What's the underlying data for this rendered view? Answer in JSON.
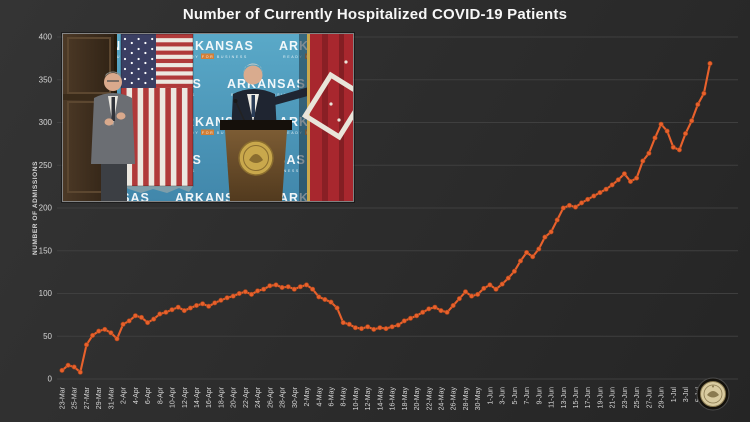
{
  "title": "Number of Currently Hospitalized COVID-19 Patients",
  "colors": {
    "background": "#2d2d2d",
    "grid": "#3f3f3f",
    "tick_text": "#d6d6d6",
    "title_text": "#f7f7f7",
    "line": "#e8612c",
    "marker_stroke": "#a8441a"
  },
  "inset": {
    "backdrop_text": "ARKANSAS",
    "backdrop_subtext": "READY FOR BUSINESS"
  },
  "chart_data": {
    "type": "line",
    "title": "Number of Currently Hospitalized COVID-19 Patients",
    "xlabel": "",
    "ylabel": "NUMBER OF ADMISSIONS",
    "ylim": [
      0,
      400
    ],
    "yticks": [
      0,
      50,
      100,
      150,
      200,
      250,
      300,
      350,
      400
    ],
    "grid": true,
    "legend": "none",
    "x_tick_interval_days": 2,
    "x": [
      "23-Mar",
      "24-Mar",
      "25-Mar",
      "26-Mar",
      "27-Mar",
      "28-Mar",
      "29-Mar",
      "30-Mar",
      "31-Mar",
      "1-Apr",
      "2-Apr",
      "3-Apr",
      "4-Apr",
      "5-Apr",
      "6-Apr",
      "7-Apr",
      "8-Apr",
      "9-Apr",
      "10-Apr",
      "11-Apr",
      "12-Apr",
      "13-Apr",
      "14-Apr",
      "15-Apr",
      "16-Apr",
      "17-Apr",
      "18-Apr",
      "19-Apr",
      "20-Apr",
      "21-Apr",
      "22-Apr",
      "23-Apr",
      "24-Apr",
      "25-Apr",
      "26-Apr",
      "27-Apr",
      "28-Apr",
      "29-Apr",
      "30-Apr",
      "1-May",
      "2-May",
      "3-May",
      "4-May",
      "5-May",
      "6-May",
      "7-May",
      "8-May",
      "9-May",
      "10-May",
      "11-May",
      "12-May",
      "13-May",
      "14-May",
      "15-May",
      "16-May",
      "17-May",
      "18-May",
      "19-May",
      "20-May",
      "21-May",
      "22-May",
      "23-May",
      "24-May",
      "25-May",
      "26-May",
      "27-May",
      "28-May",
      "29-May",
      "30-May",
      "31-May",
      "1-Jun",
      "2-Jun",
      "3-Jun",
      "4-Jun",
      "5-Jun",
      "6-Jun",
      "7-Jun",
      "8-Jun",
      "9-Jun",
      "10-Jun",
      "11-Jun",
      "12-Jun",
      "13-Jun",
      "14-Jun",
      "15-Jun",
      "16-Jun",
      "17-Jun",
      "18-Jun",
      "19-Jun",
      "20-Jun",
      "21-Jun",
      "22-Jun",
      "23-Jun",
      "24-Jun",
      "25-Jun",
      "26-Jun",
      "27-Jun",
      "28-Jun",
      "29-Jun",
      "30-Jun",
      "1-Jul",
      "2-Jul",
      "3-Jul",
      "4-Jul",
      "5-Jul",
      "6-Jul",
      "7-Jul"
    ],
    "values": [
      10,
      16,
      14,
      8,
      40,
      51,
      56,
      58,
      54,
      47,
      64,
      68,
      74,
      72,
      66,
      70,
      76,
      78,
      81,
      84,
      80,
      83,
      86,
      88,
      85,
      89,
      92,
      95,
      97,
      100,
      102,
      99,
      103,
      105,
      109,
      110,
      107,
      108,
      105,
      108,
      110,
      105,
      96,
      93,
      90,
      83,
      66,
      64,
      60,
      59,
      61,
      58,
      60,
      59,
      61,
      63,
      68,
      71,
      74,
      78,
      82,
      84,
      80,
      78,
      86,
      94,
      102,
      97,
      99,
      106,
      110,
      105,
      111,
      118,
      126,
      138,
      148,
      143,
      152,
      166,
      172,
      186,
      200,
      203,
      201,
      206,
      210,
      214,
      218,
      222,
      227,
      233,
      240,
      231,
      235,
      255,
      264,
      282,
      298,
      290,
      271,
      268,
      287,
      302,
      321,
      334,
      369
    ]
  }
}
